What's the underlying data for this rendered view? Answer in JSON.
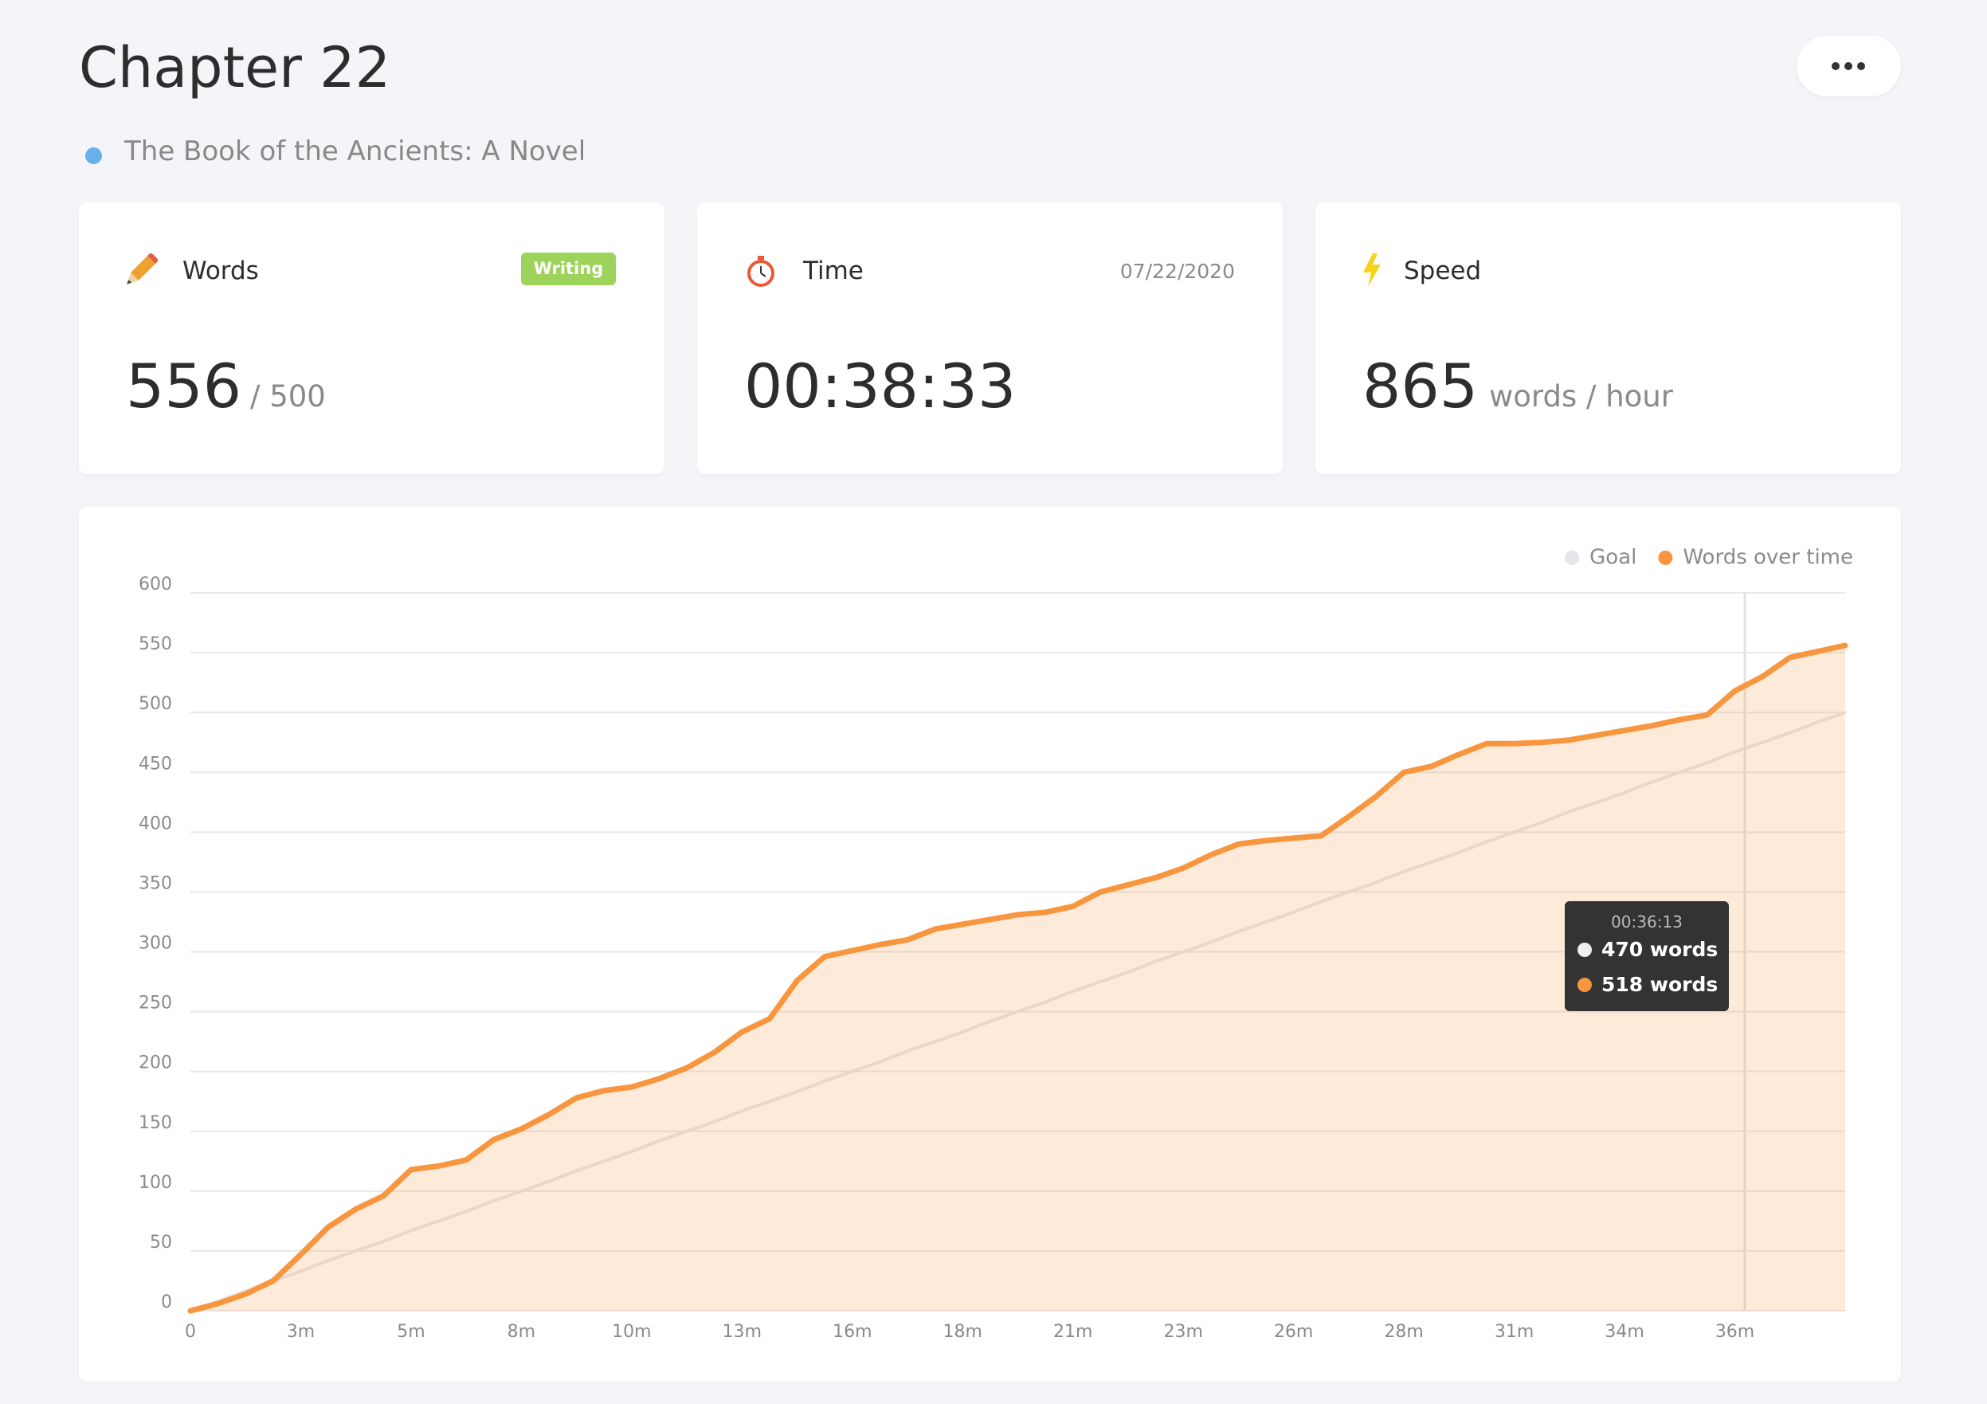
{
  "header": {
    "title": "Chapter 22",
    "subtitle": "The Book of the Ancients: A Novel"
  },
  "cards": [
    {
      "label": "Words",
      "badge": "Writing",
      "value": 556,
      "unit": "/ 500"
    },
    {
      "label": "Time",
      "date": "07/22/2020",
      "value": "00:38:33"
    },
    {
      "label": "Speed",
      "value": 865,
      "unit": "words / hour"
    }
  ],
  "chart_data": {
    "type": "line",
    "area": true,
    "grid": true,
    "legend": "top-right",
    "categories": [
      "0",
      null,
      null,
      null,
      "3m",
      null,
      null,
      null,
      "5m",
      null,
      null,
      null,
      "8m",
      null,
      null,
      null,
      "10m",
      null,
      null,
      null,
      "13m",
      null,
      null,
      null,
      "16m",
      null,
      null,
      null,
      "18m",
      null,
      null,
      null,
      "21m",
      null,
      null,
      null,
      "23m",
      null,
      null,
      null,
      "26m",
      null,
      null,
      null,
      "28m",
      null,
      null,
      null,
      "31m",
      null,
      null,
      null,
      "34m",
      null,
      null,
      null,
      "36m",
      null,
      null,
      null,
      null
    ],
    "series": [
      {
        "name": "Goal",
        "color": "#e6e6ea",
        "values": [
          0,
          8,
          17,
          25,
          33,
          42,
          50,
          58,
          67,
          75,
          83,
          92,
          100,
          108,
          117,
          125,
          133,
          142,
          150,
          158,
          167,
          175,
          183,
          192,
          200,
          208,
          217,
          225,
          233,
          242,
          250,
          258,
          267,
          275,
          283,
          292,
          300,
          308,
          317,
          325,
          333,
          342,
          350,
          358,
          367,
          375,
          383,
          392,
          400,
          408,
          417,
          425,
          433,
          442,
          450,
          458,
          467,
          475,
          483,
          492,
          500
        ]
      },
      {
        "name": "Words over time",
        "color": "#f7963f",
        "values": [
          0,
          6,
          14,
          25,
          47,
          70,
          85,
          96,
          118,
          121,
          126,
          143,
          152,
          164,
          178,
          184,
          187,
          194,
          203,
          216,
          233,
          244,
          276,
          296,
          301,
          306,
          310,
          319,
          323,
          327,
          331,
          333,
          338,
          350,
          356,
          362,
          370,
          381,
          390,
          393,
          395,
          397,
          413,
          430,
          450,
          455,
          465,
          474,
          474,
          475,
          477,
          481,
          485,
          489,
          494,
          498,
          518,
          530,
          546,
          551,
          556
        ]
      }
    ],
    "ylim": [
      0,
      600
    ],
    "yticks": [
      0,
      50,
      100,
      150,
      200,
      250,
      300,
      350,
      400,
      450,
      500,
      550,
      600
    ],
    "tooltip": {
      "time": "00:36:13",
      "lines": [
        "470 words",
        "518 words"
      ]
    }
  }
}
